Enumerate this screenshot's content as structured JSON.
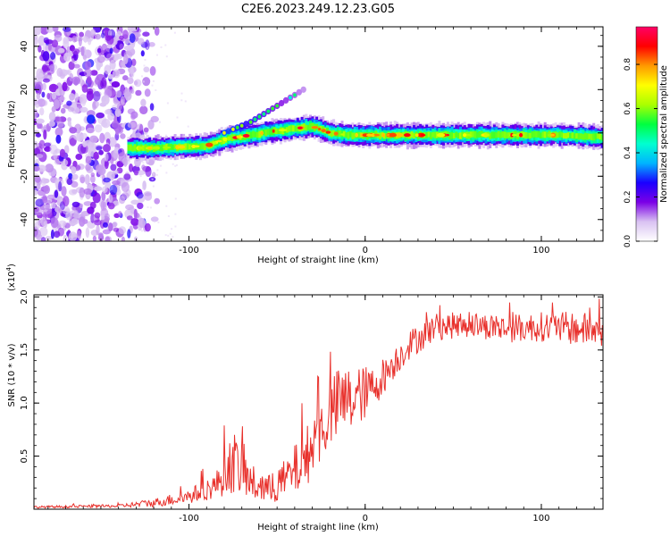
{
  "title": "C2E6.2023.249.12.23.G05",
  "chart_data": [
    {
      "type": "heatmap",
      "name": "spectrogram",
      "xlabel": "Height of straight line (km)",
      "ylabel": "Frequency (Hz)",
      "xlim": [
        -188,
        135
      ],
      "ylim": [
        -50,
        49
      ],
      "xticks": [
        -100,
        0,
        100
      ],
      "xtick_labels": [
        "-100",
        "0",
        "100"
      ],
      "yticks": [
        -40,
        -20,
        0,
        20,
        40
      ],
      "ytick_labels": [
        "-40",
        "-20",
        "0",
        "20",
        "40"
      ],
      "colorbar": {
        "label": "Normalized spectral amplitude",
        "range": [
          0,
          0.97
        ],
        "ticks": [
          0.0,
          0.2,
          0.4,
          0.6,
          0.8
        ],
        "tick_labels": [
          "0.0",
          "0.2",
          "0.4",
          "0.6",
          "0.8"
        ],
        "colormap": [
          "#ffffff",
          "#d9c2f2",
          "#7b00e6",
          "#1a00ff",
          "#00b4ff",
          "#00ffd0",
          "#00ff40",
          "#aaff00",
          "#ffff00",
          "#ff9900",
          "#ff0000",
          "#ff0066"
        ]
      },
      "main_trace": [
        {
          "x": -135,
          "f": -7
        },
        {
          "x": -120,
          "f": -7
        },
        {
          "x": -105,
          "f": -6.5
        },
        {
          "x": -90,
          "f": -6
        },
        {
          "x": -80,
          "f": -3
        },
        {
          "x": -65,
          "f": -1
        },
        {
          "x": -55,
          "f": 0.5
        },
        {
          "x": -40,
          "f": 2
        },
        {
          "x": -30,
          "f": 3
        },
        {
          "x": -20,
          "f": 0
        },
        {
          "x": -10,
          "f": -1
        },
        {
          "x": 0,
          "f": -1
        },
        {
          "x": 20,
          "f": -1
        },
        {
          "x": 50,
          "f": -1
        },
        {
          "x": 80,
          "f": -1
        },
        {
          "x": 110,
          "f": -1
        },
        {
          "x": 135,
          "f": -2
        }
      ],
      "secondary_trace": [
        {
          "x": -80,
          "f": 0
        },
        {
          "x": -65,
          "f": 5
        },
        {
          "x": -55,
          "f": 10
        },
        {
          "x": -45,
          "f": 15
        },
        {
          "x": -35,
          "f": 20
        }
      ],
      "noise_region_x": [
        -188,
        -130
      ]
    },
    {
      "type": "line",
      "name": "snr",
      "xlabel": "Height of straight line (km)",
      "ylabel": "SNR (10 * v/v)",
      "y_scale_label": "(x10",
      "y_scale_exp": "4",
      "y_scale_close": ")",
      "color": "#e8302b",
      "xlim": [
        -188,
        135
      ],
      "ylim": [
        0,
        2.02
      ],
      "xticks": [
        -100,
        0,
        100
      ],
      "xtick_labels": [
        "-100",
        "0",
        "100"
      ],
      "yticks": [
        0.5,
        1.0,
        1.5,
        2.0
      ],
      "ytick_labels": [
        "0.5",
        "1.0",
        "1.5",
        "2.0"
      ],
      "envelope": [
        {
          "x": -188,
          "mean": 0.02,
          "amp": 0.01
        },
        {
          "x": -140,
          "mean": 0.03,
          "amp": 0.015
        },
        {
          "x": -120,
          "mean": 0.06,
          "amp": 0.04
        },
        {
          "x": -100,
          "mean": 0.12,
          "amp": 0.07
        },
        {
          "x": -85,
          "mean": 0.22,
          "amp": 0.12
        },
        {
          "x": -75,
          "mean": 0.45,
          "amp": 0.3
        },
        {
          "x": -65,
          "mean": 0.25,
          "amp": 0.18
        },
        {
          "x": -55,
          "mean": 0.18,
          "amp": 0.14
        },
        {
          "x": -45,
          "mean": 0.28,
          "amp": 0.2
        },
        {
          "x": -35,
          "mean": 0.45,
          "amp": 0.28
        },
        {
          "x": -25,
          "mean": 0.75,
          "amp": 0.3
        },
        {
          "x": -15,
          "mean": 1.0,
          "amp": 0.35
        },
        {
          "x": -5,
          "mean": 1.05,
          "amp": 0.3
        },
        {
          "x": 5,
          "mean": 1.15,
          "amp": 0.2
        },
        {
          "x": 15,
          "mean": 1.35,
          "amp": 0.15
        },
        {
          "x": 25,
          "mean": 1.55,
          "amp": 0.14
        },
        {
          "x": 40,
          "mean": 1.72,
          "amp": 0.13
        },
        {
          "x": 60,
          "mean": 1.74,
          "amp": 0.12
        },
        {
          "x": 80,
          "mean": 1.7,
          "amp": 0.13
        },
        {
          "x": 100,
          "mean": 1.72,
          "amp": 0.14
        },
        {
          "x": 120,
          "mean": 1.7,
          "amp": 0.16
        },
        {
          "x": 135,
          "mean": 1.68,
          "amp": 0.16
        }
      ]
    }
  ]
}
